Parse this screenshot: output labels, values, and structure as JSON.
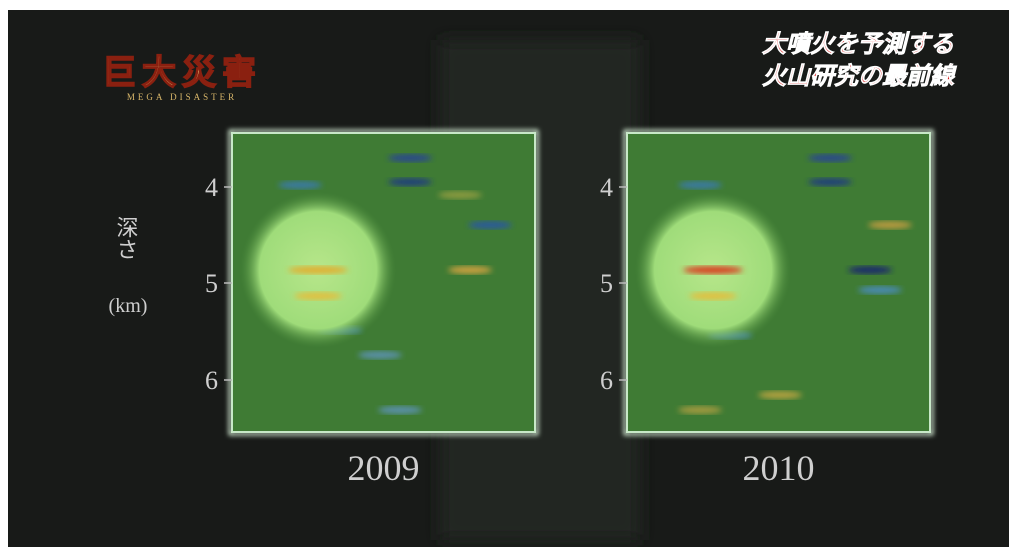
{
  "logo": {
    "title": "巨大災害",
    "subtitle": "MEGA DISASTER"
  },
  "caption": [
    "大噴火を予測する",
    "火山研究の最前線"
  ],
  "axis_label": {
    "title": "深さ",
    "unit": "(km)"
  },
  "panels": [
    {
      "year": "2009",
      "ticks": [
        "4",
        "5",
        "6"
      ]
    },
    {
      "year": "2010",
      "ticks": [
        "4",
        "5",
        "6"
      ]
    }
  ]
}
